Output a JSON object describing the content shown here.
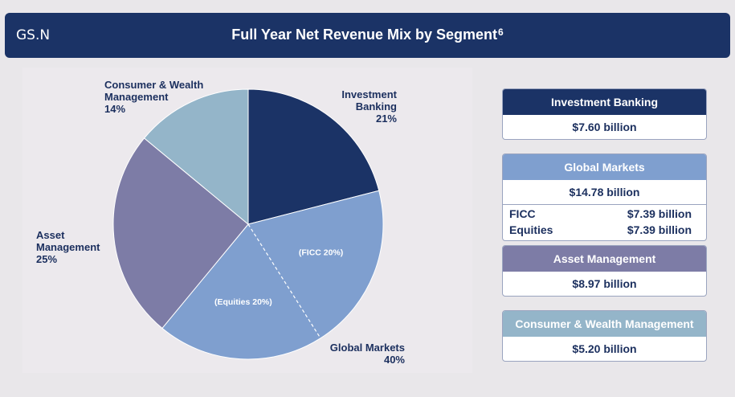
{
  "header": {
    "ticker": "GS.N",
    "title": "Full Year Net Revenue Mix by Segment",
    "footnote": "6"
  },
  "colors": {
    "header_bg": "#1b3366",
    "investment_banking": "#1b3366",
    "global_markets": "#7f9fcf",
    "asset_management": "#7d7ca6",
    "consumer_wealth": "#94b5c9"
  },
  "chart_data": {
    "type": "pie",
    "title": "Full Year Net Revenue Mix by Segment",
    "slices": [
      {
        "label": "Investment Banking",
        "label_lines": [
          "Investment",
          "Banking"
        ],
        "pct_label": "21%",
        "value": 21,
        "color": "#1b3366"
      },
      {
        "label": "Global Markets",
        "label_lines": [
          "Global Markets"
        ],
        "pct_label": "40%",
        "value": 40,
        "color": "#7f9fcf",
        "sub_slices": [
          {
            "label": "(FICC 20%)",
            "value": 20
          },
          {
            "label": "(Equities 20%)",
            "value": 20
          }
        ]
      },
      {
        "label": "Asset Management",
        "label_lines": [
          "Asset",
          "Management"
        ],
        "pct_label": "25%",
        "value": 25,
        "color": "#7d7ca6"
      },
      {
        "label": "Consumer & Wealth Management",
        "label_lines": [
          "Consumer & Wealth",
          "Management"
        ],
        "pct_label": "14%",
        "value": 14,
        "color": "#94b5c9"
      }
    ]
  },
  "cards": [
    {
      "title": "Investment Banking",
      "value": "$7.60 billion",
      "color": "#1b3366"
    },
    {
      "title": "Global Markets",
      "value": "$14.78 billion",
      "color": "#7f9fcf",
      "rows": [
        {
          "label": "FICC",
          "value": "$7.39 billion"
        },
        {
          "label": "Equities",
          "value": "$7.39 billion"
        }
      ]
    },
    {
      "title": "Asset Management",
      "value": "$8.97 billion",
      "color": "#7d7ca6"
    },
    {
      "title": "Consumer & Wealth Management",
      "value": "$5.20 billion",
      "color": "#94b5c9"
    }
  ]
}
